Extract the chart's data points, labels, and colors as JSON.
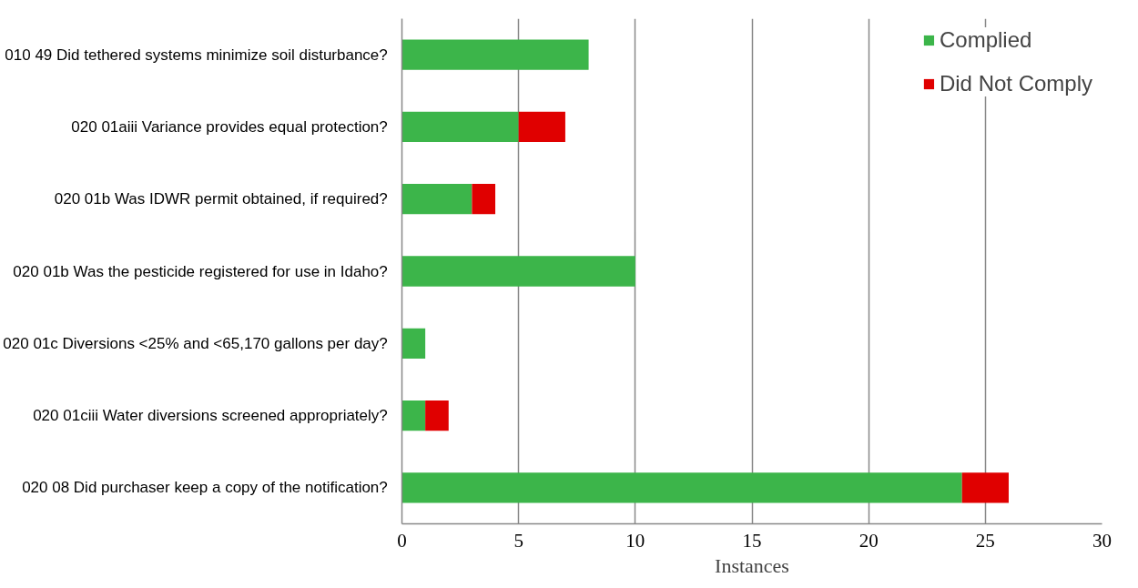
{
  "chart_data": {
    "type": "bar",
    "orientation": "horizontal",
    "stacked": true,
    "xlabel": "Instances",
    "categories": [
      "010 49  Did tethered systems minimize soil disturbance?",
      "020 01aiii  Variance provides equal protection?",
      "020 01b  Was IDWR permit obtained, if required?",
      "020 01b  Was the pesticide registered for use in Idaho?",
      "020 01c  Diversions <25% and <65,170 gallons per day?",
      "020 01ciii  Water diversions screened appropriately?",
      "020 08  Did purchaser keep a copy of the notification?"
    ],
    "series": [
      {
        "name": "Complied",
        "color": "#3cb54a",
        "values": [
          8,
          5,
          3,
          10,
          1,
          1,
          24
        ]
      },
      {
        "name": "Did Not Comply",
        "color": "#e00000",
        "values": [
          0,
          2,
          1,
          0,
          0,
          1,
          2
        ]
      }
    ],
    "xlim": [
      0,
      30
    ],
    "xticks": [
      0,
      5,
      10,
      15,
      20,
      25,
      30
    ],
    "grid": "x",
    "legend": "top right"
  }
}
